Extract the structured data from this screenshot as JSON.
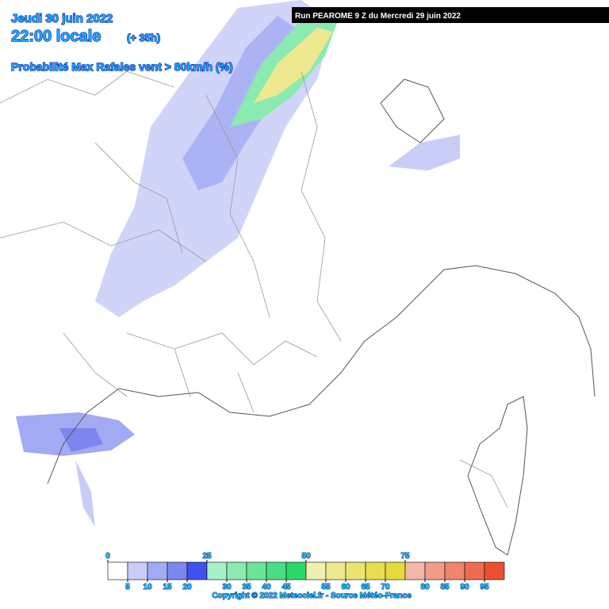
{
  "header": {
    "date": "Jeudi 30 juin 2022",
    "time": "22:00 locale",
    "lead": "(+ 35h)",
    "subtitle": "Probabilité Max Rafales vent > 80km/h (%)"
  },
  "run": "Run PEAROME 9 Z du Mercredi 29 juin 2022",
  "legend": {
    "top_labels": [
      0,
      25,
      50,
      75
    ],
    "bottom_labels": [
      5,
      10,
      15,
      20,
      30,
      35,
      40,
      45,
      55,
      60,
      65,
      70,
      80,
      85,
      90,
      95
    ],
    "step": 5,
    "colors": [
      "#ffffff",
      "#c8cdf8",
      "#a2aaf4",
      "#7c86ee",
      "#3e52f0",
      "#a8f0c8",
      "#8aeab0",
      "#6ae49a",
      "#4ade82",
      "#2cd86a",
      "#f0eeb0",
      "#eee890",
      "#ece470",
      "#eadc50",
      "#e8d83a",
      "#f0b8a8",
      "#f09c88",
      "#f0846c",
      "#ee6a50",
      "#ec5030"
    ]
  },
  "copyright": "Copyright © 2022 Meteociel.fr - Source Météo-France"
}
